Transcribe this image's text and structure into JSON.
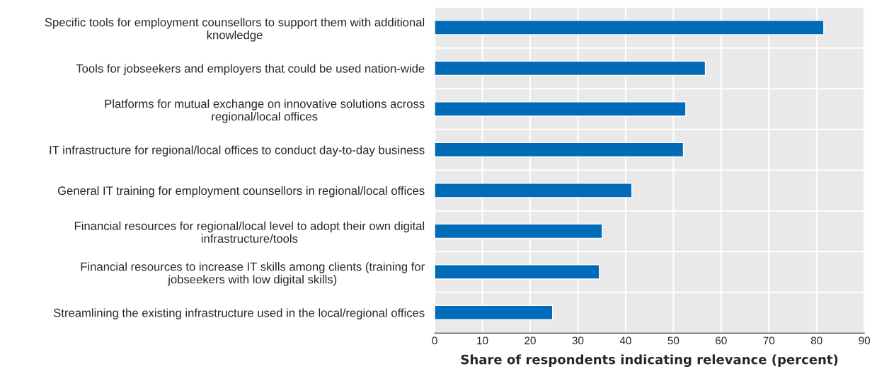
{
  "chart_data": {
    "type": "bar",
    "orientation": "horizontal",
    "xlabel": "Share of respondents indicating relevance (percent)",
    "categories": [
      "Specific tools for employment counsellors to support them with additional\nknowledge",
      "Tools for jobseekers and employers that could be used nation-wide",
      "Platforms for mutual exchange on innovative solutions across\nregional/local offices",
      "IT infrastructure for regional/local offices to conduct day-to-day business",
      "General IT training for employment counsellors in regional/local offices",
      "Financial resources for regional/local level to adopt their own digital\ninfrastructure/tools",
      "Financial resources to increase IT skills among clients (training for\njobseekers with low digital skills)",
      "Streamlining the existing infrastructure used in the local/regional offices"
    ],
    "values": [
      81.5,
      56.7,
      52.6,
      52.1,
      41.3,
      35.1,
      34.5,
      24.7
    ],
    "color": "#006bb6",
    "xlim": [
      0,
      90
    ],
    "xticks": [
      0,
      10,
      20,
      30,
      40,
      50,
      60,
      70,
      80,
      90
    ],
    "grid": "x"
  }
}
